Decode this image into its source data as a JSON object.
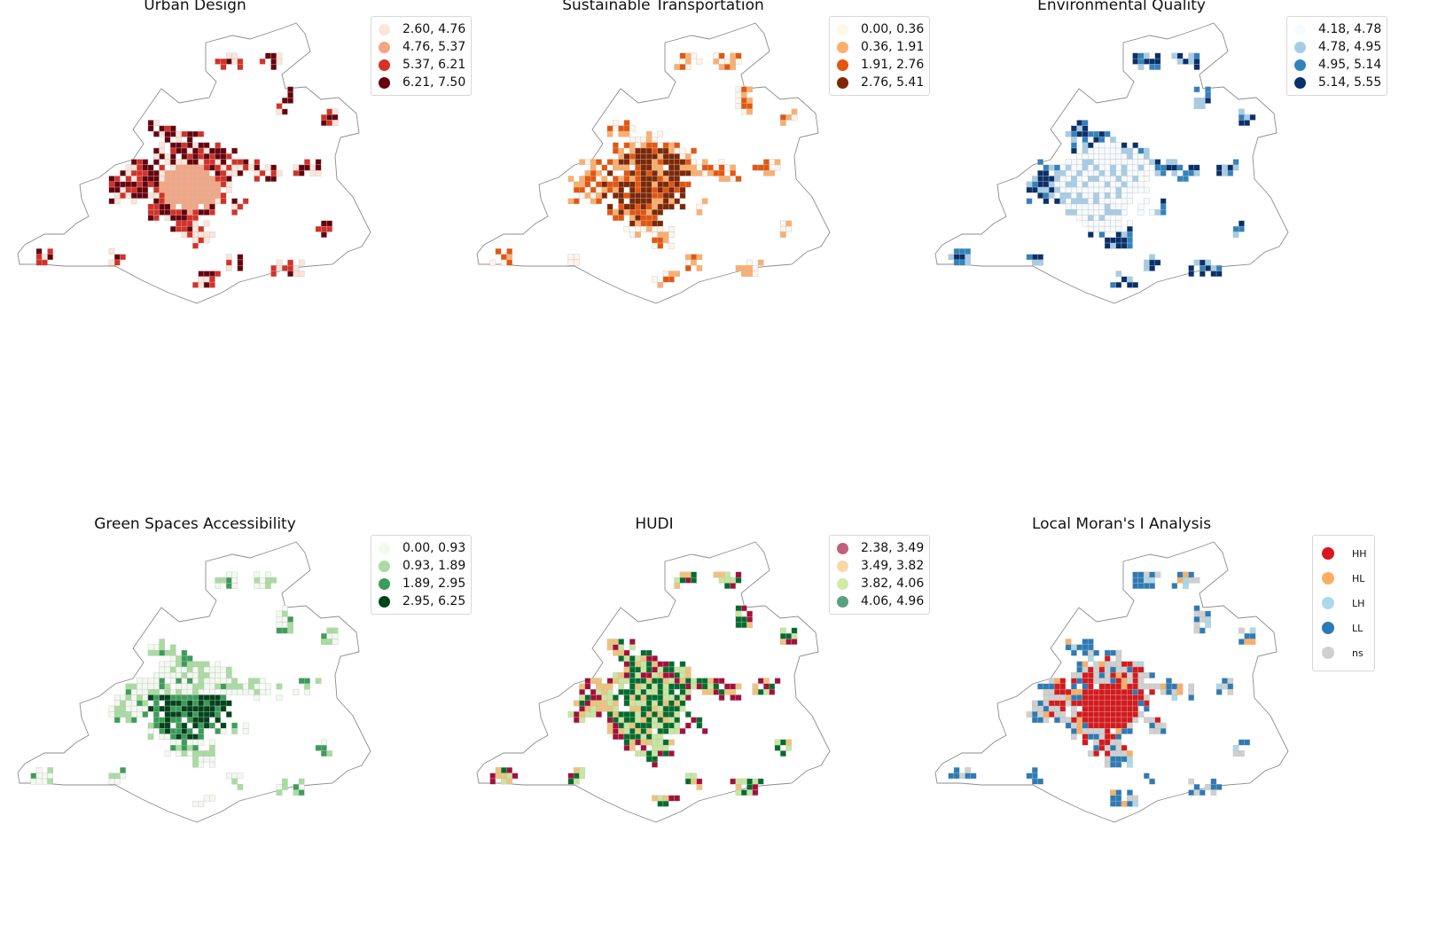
{
  "panels": [
    {
      "id": "urban",
      "title": "Urban Design",
      "legend": [
        {
          "label": "2.60, 4.76",
          "color": "#fee5d9"
        },
        {
          "label": "4.76, 5.37",
          "color": "#f4a582"
        },
        {
          "label": "5.37, 6.21",
          "color": "#d73027"
        },
        {
          "label": "6.21, 7.50",
          "color": "#67000d"
        }
      ],
      "scheme": "center-light"
    },
    {
      "id": "transport",
      "title": "Sustainable Transportation",
      "legend": [
        {
          "label": "0.00, 0.36",
          "color": "#fff5eb"
        },
        {
          "label": "0.36, 1.91",
          "color": "#fdae6b"
        },
        {
          "label": "1.91, 2.76",
          "color": "#e6550d"
        },
        {
          "label": "2.76, 5.41",
          "color": "#7f2704"
        }
      ],
      "scheme": "center-dark"
    },
    {
      "id": "environment",
      "title": "Environmental Quality",
      "legend": [
        {
          "label": "4.18, 4.78",
          "color": "#f7fbff"
        },
        {
          "label": "4.78, 4.95",
          "color": "#a6cde6"
        },
        {
          "label": "4.95, 5.14",
          "color": "#3182bd"
        },
        {
          "label": "5.14, 5.55",
          "color": "#08306b"
        }
      ],
      "scheme": "edge-dark"
    },
    {
      "id": "green",
      "title": "Green Spaces Accessibility",
      "legend": [
        {
          "label": "0.00, 0.93",
          "color": "#f2faf0"
        },
        {
          "label": "0.93, 1.89",
          "color": "#a8dca0"
        },
        {
          "label": "1.89, 2.95",
          "color": "#3a9d58"
        },
        {
          "label": "2.95, 6.25",
          "color": "#00441b"
        }
      ],
      "scheme": "south-dark"
    },
    {
      "id": "hudi",
      "title": "HUDI",
      "legend": [
        {
          "label": "2.38, 3.49",
          "color": "#c0607e"
        },
        {
          "label": "3.49, 3.82",
          "color": "#f8d8a6"
        },
        {
          "label": "3.82, 4.06",
          "color": "#d4e9a8"
        },
        {
          "label": "4.06, 4.96",
          "color": "#5c9e82"
        }
      ],
      "cell_colors": [
        "#a50f3a",
        "#f0c27a",
        "#c8e6a0",
        "#006d2c"
      ],
      "scheme": "mixed"
    },
    {
      "id": "moran",
      "title": "Local Moran's I Analysis",
      "legend": [
        {
          "label": "HH",
          "color": "#d7191c"
        },
        {
          "label": "HL",
          "color": "#fdae61"
        },
        {
          "label": "LH",
          "color": "#abd9e9"
        },
        {
          "label": "LL",
          "color": "#2c7bb6"
        },
        {
          "label": "ns",
          "color": "#d0d0d0"
        }
      ],
      "scheme": "moran"
    }
  ]
}
